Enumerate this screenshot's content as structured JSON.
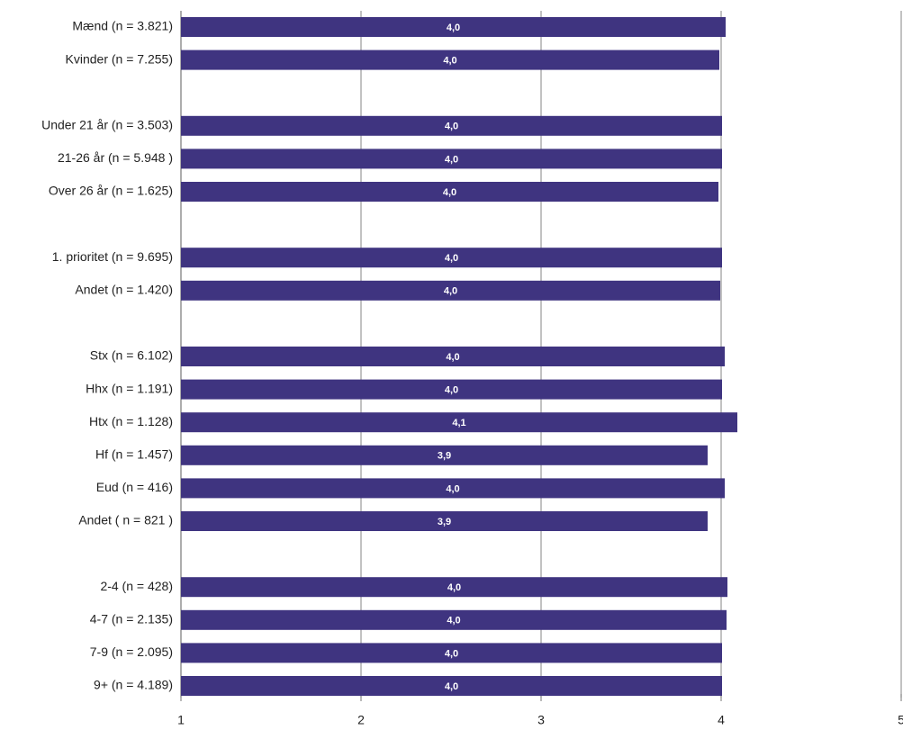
{
  "chart_data": {
    "type": "barh",
    "categories": [
      "Mænd (n = 3.821)",
      "Kvinder (n = 7.255)",
      null,
      "Under 21 år (n = 3.503)",
      "21-26 år (n = 5.948 )",
      "Over 26 år (n = 1.625)",
      null,
      "1. prioritet (n = 9.695)",
      "Andet (n = 1.420)",
      null,
      "Stx (n = 6.102)",
      "Hhx (n = 1.191)",
      "Htx (n = 1.128)",
      "Hf (n = 1.457)",
      "Eud (n = 416)",
      "Andet ( n = 821 )",
      null,
      "2-4 (n = 428)",
      "4-7 (n = 2.135)",
      "7-9 (n = 2.095)",
      "9+ (n = 4.189)"
    ],
    "values": [
      4.025,
      3.99,
      null,
      4.005,
      4.005,
      3.985,
      null,
      4.005,
      3.995,
      null,
      4.02,
      4.005,
      4.09,
      3.925,
      4.02,
      3.925,
      null,
      4.035,
      4.03,
      4.005,
      4.005
    ],
    "value_labels": [
      "4,0",
      "4,0",
      null,
      "4,0",
      "4,0",
      "4,0",
      null,
      "4,0",
      "4,0",
      null,
      "4,0",
      "4,0",
      "4,1",
      "3,9",
      "4,0",
      "3,9",
      null,
      "4,0",
      "4,0",
      "4,0",
      "4,0"
    ],
    "color": "#3f3480",
    "xlim": [
      1,
      5
    ],
    "xticks": [
      1,
      2,
      3,
      4,
      5
    ],
    "grid": true
  }
}
